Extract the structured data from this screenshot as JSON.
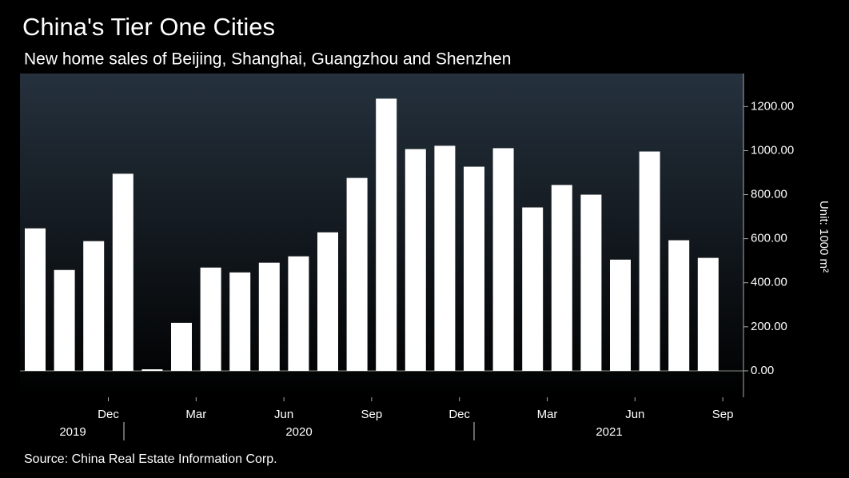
{
  "chart_data": {
    "type": "bar",
    "title": "China's Tier One Cities",
    "subtitle": "New home sales of Beijing, Shanghai, Guangzhou and Shenzhen",
    "y_axis_label": "Unit: 1000 m²",
    "source": "Source: China Real Estate Information Corp.",
    "categories": [
      null,
      null,
      null,
      null,
      null,
      null,
      null,
      null,
      null,
      null,
      null,
      null,
      null,
      null,
      null,
      null,
      null,
      null,
      null,
      null,
      null,
      null,
      null,
      null
    ],
    "values": [
      647,
      458,
      589,
      895,
      7,
      218,
      469,
      447,
      491,
      520,
      629,
      876,
      1236,
      1007,
      1022,
      927,
      1011,
      742,
      844,
      800,
      505,
      996,
      593,
      513
    ],
    "color": "#ffffff",
    "xticks": [
      {
        "value": 3,
        "label": "Dec"
      },
      {
        "value": 6,
        "label": "Mar"
      },
      {
        "value": 9,
        "label": "Jun"
      },
      {
        "value": 12,
        "label": "Sep"
      },
      {
        "value": 15,
        "label": "Dec"
      },
      {
        "value": 18,
        "label": "Mar"
      },
      {
        "value": 21,
        "label": "Jun"
      },
      {
        "value": 24,
        "label": "Sep"
      }
    ],
    "year_labels": [
      "2019",
      "2020",
      "2021"
    ],
    "ylim": [
      -120,
      1350
    ],
    "yticks": [
      {
        "value": 0,
        "label": "0.00"
      },
      {
        "value": 200,
        "label": "200.00"
      },
      {
        "value": 400,
        "label": "400.00"
      },
      {
        "value": 600,
        "label": "600.00"
      },
      {
        "value": 800,
        "label": "800.00"
      },
      {
        "value": 1000,
        "label": "1000.00"
      },
      {
        "value": 1200,
        "label": "1200.00"
      }
    ]
  }
}
